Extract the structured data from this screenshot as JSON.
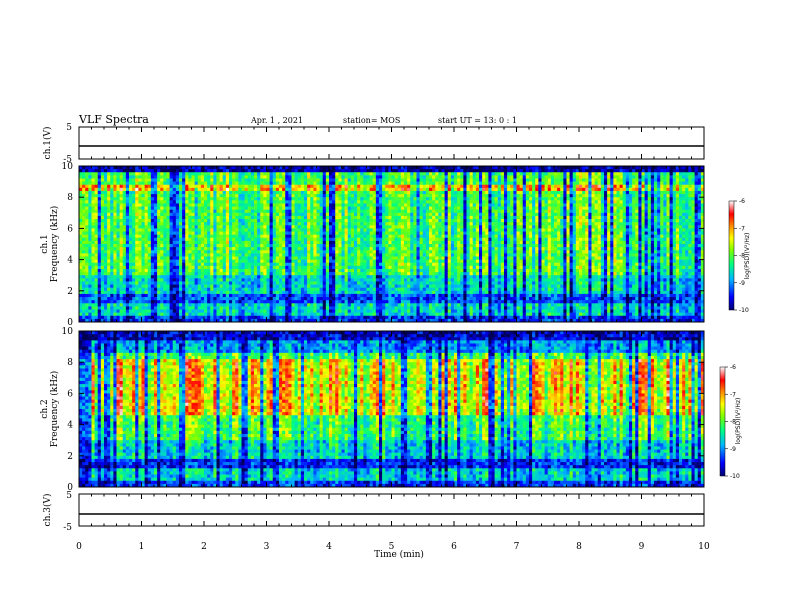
{
  "header": {
    "title": "VLF Spectra",
    "date": "Apr. 1  , 2021",
    "station": "station= MOS",
    "start": "start  UT  =   13: 0  : 1"
  },
  "chart_data": [
    {
      "type": "line",
      "name": "ch1-voltage",
      "ylabel": "ch.1(V)",
      "ylim": [
        -5,
        5
      ],
      "yticks": [
        "5",
        "-5"
      ],
      "xlim": [
        0,
        10
      ],
      "x": [
        0,
        10
      ],
      "y": [
        0,
        0
      ]
    },
    {
      "type": "heatmap",
      "name": "ch1-spectrogram",
      "ylabel_line1": "ch.1",
      "ylabel_line2": "Frequency (kHz)",
      "ylim": [
        0,
        10
      ],
      "yticks": [
        "0",
        "2",
        "4",
        "6",
        "8",
        "10"
      ],
      "xlim": [
        0,
        10
      ],
      "colorbar_label": "log(PSD)(V²/Hz)",
      "colorbar_ticks": [
        "-6",
        "-7",
        "-8",
        "-9",
        "-10"
      ],
      "crange": [
        -10,
        -6
      ],
      "colors": [
        "#000080",
        "#0000ff",
        "#00c0ff",
        "#00ff80",
        "#80ff00",
        "#ffff00",
        "#ff8000",
        "#ff0000",
        "#ffffff"
      ]
    },
    {
      "type": "heatmap",
      "name": "ch2-spectrogram",
      "ylabel_line1": "ch.2",
      "ylabel_line2": "Frequency (kHz)",
      "ylim": [
        0,
        10
      ],
      "yticks": [
        "0",
        "2",
        "4",
        "6",
        "8",
        "10"
      ],
      "xlim": [
        0,
        10
      ],
      "colorbar_label": "log(PSD)(V²/Hz)",
      "colorbar_ticks": [
        "-6",
        "-7",
        "-8",
        "-9",
        "-10"
      ],
      "crange": [
        -10,
        -6
      ]
    },
    {
      "type": "line",
      "name": "ch3-voltage",
      "ylabel": "ch.3(V)",
      "ylim": [
        -5,
        5
      ],
      "yticks": [
        "5",
        "-5"
      ],
      "xlim": [
        0,
        10
      ],
      "x": [
        0,
        10
      ],
      "y": [
        -1,
        -1
      ]
    }
  ],
  "xaxis": {
    "label": "Time  (min)",
    "ticks": [
      "0",
      "1",
      "2",
      "3",
      "4",
      "5",
      "6",
      "7",
      "8",
      "9",
      "10"
    ]
  }
}
